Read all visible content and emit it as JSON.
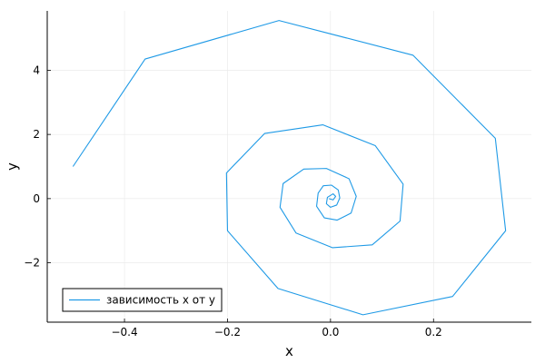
{
  "chart_data": {
    "type": "line",
    "xlabel": "x",
    "ylabel": "y",
    "xlim": [
      -0.55,
      0.39
    ],
    "ylim": [
      -3.85,
      5.85
    ],
    "xticks": [
      -0.4,
      -0.2,
      0.0,
      0.2
    ],
    "xtick_labels": [
      "−0.4",
      "−0.2",
      "0.0",
      "0.2"
    ],
    "yticks": [
      -2,
      0,
      2,
      4
    ],
    "ytick_labels": [
      "−2",
      "0",
      "2",
      "4"
    ],
    "grid": true,
    "legend_position": "bottom-left",
    "line_color": "#1f9ae6",
    "series": [
      {
        "name": "зависимость x от y",
        "x": [
          -0.5,
          -0.36,
          -0.1,
          0.16,
          0.32,
          0.34,
          0.237,
          0.063,
          -0.102,
          -0.2,
          -0.202,
          -0.128,
          -0.015,
          0.087,
          0.141,
          0.135,
          0.081,
          0.004,
          -0.067,
          -0.098,
          -0.092,
          -0.052,
          -0.008,
          0.036,
          0.05,
          0.04,
          0.013,
          -0.012,
          -0.027,
          -0.024,
          -0.014,
          0.002,
          0.015,
          0.018,
          0.012,
          0.0,
          -0.008,
          -0.006,
          0.005,
          0.01,
          0.005,
          -0.003
        ],
        "y": [
          1.0,
          4.35,
          5.55,
          4.47,
          1.88,
          -1.0,
          -3.05,
          -3.62,
          -2.8,
          -1.0,
          0.8,
          2.03,
          2.3,
          1.65,
          0.45,
          -0.7,
          -1.44,
          -1.53,
          -1.07,
          -0.27,
          0.47,
          0.92,
          0.94,
          0.62,
          0.07,
          -0.45,
          -0.67,
          -0.6,
          -0.24,
          0.17,
          0.4,
          0.42,
          0.27,
          0.02,
          -0.2,
          -0.27,
          -0.16,
          0.04,
          0.15,
          0.07,
          -0.04,
          0.0
        ]
      }
    ]
  }
}
